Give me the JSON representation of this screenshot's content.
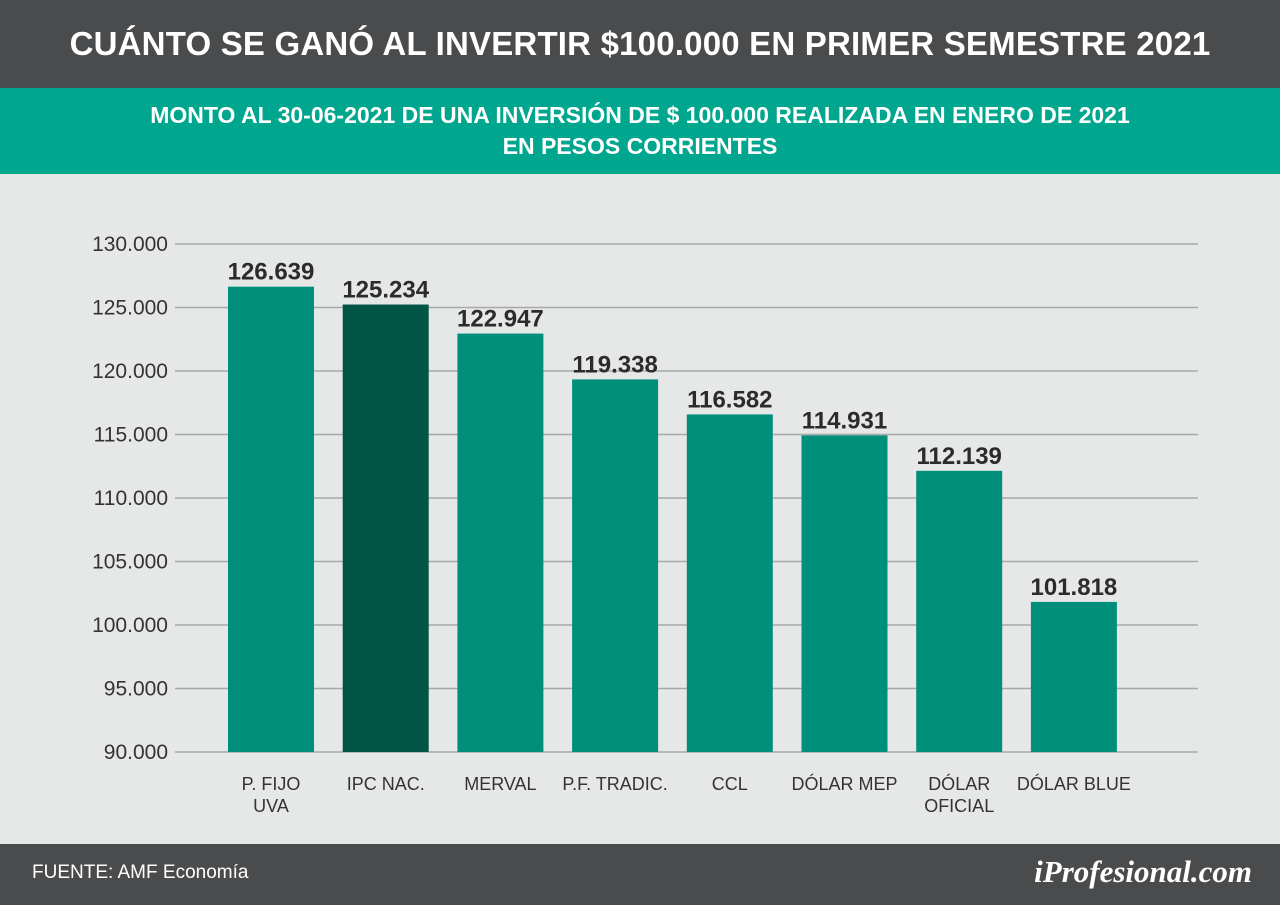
{
  "header": {
    "title": "CUÁNTO SE GANÓ AL INVERTIR $100.000 EN PRIMER SEMESTRE 2021",
    "subtitle_line1": "MONTO AL 30-06-2021 DE UNA INVERSIÓN DE $ 100.000 REALIZADA EN ENERO DE 2021",
    "subtitle_line2": "EN PESOS CORRIENTES"
  },
  "footer": {
    "source": "FUENTE: AMF Economía",
    "logo": "iProfesional.com"
  },
  "colors": {
    "bar": "#008f7a",
    "bar_highlight": "#005545",
    "grid": "#a6a8aa",
    "header_bg": "#4a4b4c",
    "subheader_bg": "#00a78e"
  },
  "chart_data": {
    "type": "bar",
    "categories": [
      [
        "P. FIJO",
        "UVA"
      ],
      [
        "IPC NAC."
      ],
      [
        "MERVAL"
      ],
      [
        "P.F. TRADIC."
      ],
      [
        "CCL"
      ],
      [
        "DÓLAR MEP"
      ],
      [
        "DÓLAR",
        "OFICIAL"
      ],
      [
        "DÓLAR BLUE"
      ]
    ],
    "values": [
      126639,
      125234,
      122947,
      119338,
      116582,
      114931,
      112139,
      101818
    ],
    "value_labels": [
      "126.639",
      "125.234",
      "122.947",
      "119.338",
      "116.582",
      "114.931",
      "112.139",
      "101.818"
    ],
    "highlight_index": 1,
    "yticks": [
      130000,
      125000,
      120000,
      115000,
      110000,
      105000,
      100000,
      95000,
      90000
    ],
    "ytick_labels": [
      "130.000",
      "125.000",
      "120.000",
      "115.000",
      "110.000",
      "105.000",
      "100.000",
      "95.000",
      "90.000"
    ],
    "ylim": [
      90000,
      130000
    ],
    "grid": true
  }
}
